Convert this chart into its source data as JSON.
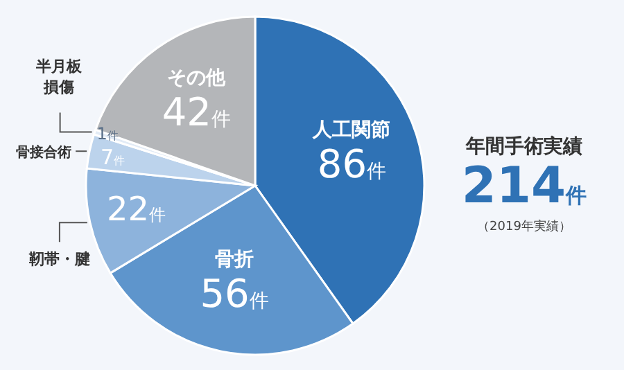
{
  "chart_data": {
    "type": "pie",
    "categories": [
      "人工関節",
      "骨折",
      "靭帯・腱",
      "骨接合術",
      "半月板損傷",
      "その他"
    ],
    "values": [
      86,
      56,
      22,
      7,
      1,
      42
    ],
    "colors": [
      "#2f72b5",
      "#5e95cc",
      "#8db3dc",
      "#bcd3ec",
      "#e2ebf6",
      "#b4b6b9"
    ],
    "value_labels": [
      "86件",
      "56件",
      "22件",
      "7件",
      "1件",
      "42件"
    ],
    "annotations": [
      "年間手術実績",
      "214件",
      "（2019年実績）"
    ]
  }
}
